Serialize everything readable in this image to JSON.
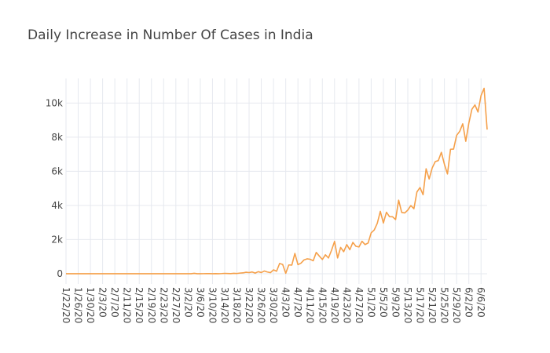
{
  "chart_data": {
    "type": "line",
    "title": "Daily Increase in Number Of Cases in India",
    "categories": [
      "1/22/20",
      null,
      null,
      null,
      "1/26/20",
      null,
      null,
      null,
      "1/30/20",
      null,
      null,
      null,
      "2/3/20",
      null,
      null,
      null,
      "2/7/20",
      null,
      null,
      null,
      "2/11/20",
      null,
      null,
      null,
      "2/15/20",
      null,
      null,
      null,
      "2/19/20",
      null,
      null,
      null,
      "2/23/20",
      null,
      null,
      null,
      "2/27/20",
      null,
      null,
      null,
      "3/2/20",
      null,
      null,
      null,
      "3/6/20",
      null,
      null,
      null,
      "3/10/20",
      null,
      null,
      null,
      "3/14/20",
      null,
      null,
      null,
      "3/18/20",
      null,
      null,
      null,
      "3/22/20",
      null,
      null,
      null,
      "3/26/20",
      null,
      null,
      null,
      "3/30/20",
      null,
      null,
      null,
      "4/3/20",
      null,
      null,
      null,
      "4/7/20",
      null,
      null,
      null,
      "4/11/20",
      null,
      null,
      null,
      "4/15/20",
      null,
      null,
      null,
      "4/19/20",
      null,
      null,
      null,
      "4/23/20",
      null,
      null,
      null,
      "4/27/20",
      null,
      null,
      null,
      "5/1/20",
      null,
      null,
      null,
      "5/5/20",
      null,
      null,
      null,
      "5/9/20",
      null,
      null,
      null,
      "5/13/20",
      null,
      null,
      null,
      "5/17/20",
      null,
      null,
      null,
      "5/21/20",
      null,
      null,
      null,
      "5/25/20",
      null,
      null,
      null,
      "5/29/20",
      null,
      null,
      null,
      "6/2/20",
      null,
      null,
      null,
      "6/6/20",
      null,
      null
    ],
    "values": [
      0,
      0,
      0,
      0,
      0,
      0,
      0,
      0,
      1,
      0,
      0,
      1,
      1,
      0,
      0,
      0,
      0,
      0,
      0,
      0,
      0,
      0,
      0,
      0,
      0,
      0,
      0,
      0,
      0,
      0,
      0,
      0,
      0,
      0,
      0,
      0,
      0,
      0,
      0,
      0,
      2,
      1,
      22,
      2,
      1,
      3,
      5,
      4,
      1,
      8,
      2,
      9,
      20,
      11,
      6,
      23,
      14,
      38,
      50,
      86,
      66,
      103,
      37,
      121,
      70,
      160,
      100,
      64,
      227,
      146,
      601,
      545,
      24,
      515,
      506,
      1190,
      533,
      620,
      809,
      873,
      848,
      759,
      1248,
      1034,
      835,
      1108,
      922,
      1370,
      1893,
      924,
      1541,
      1290,
      1707,
      1408,
      1835,
      1607,
      1568,
      1902,
      1705,
      1801,
      2396,
      2564,
      2952,
      3656,
      2971,
      3602,
      3344,
      3339,
      3175,
      4311,
      3592,
      3562,
      3726,
      3991,
      3808,
      4794,
      5050,
      4628,
      6147,
      5553,
      6198,
      6568,
      6629,
      7111,
      6414,
      5843,
      7293,
      7300,
      8105,
      8336,
      8782,
      7761,
      8821,
      9633,
      9889,
      9471,
      10438,
      10864,
      8442
    ],
    "color": "#f5a04a",
    "ylim": [
      -600,
      11440
    ],
    "yticks": [
      0,
      {
        "value": 2000,
        "label": "2k"
      },
      {
        "value": 4000,
        "label": "4k"
      },
      {
        "value": 6000,
        "label": "6k"
      },
      {
        "value": 8000,
        "label": "8k"
      },
      {
        "value": 10000,
        "label": "10k"
      }
    ],
    "grid": true
  }
}
